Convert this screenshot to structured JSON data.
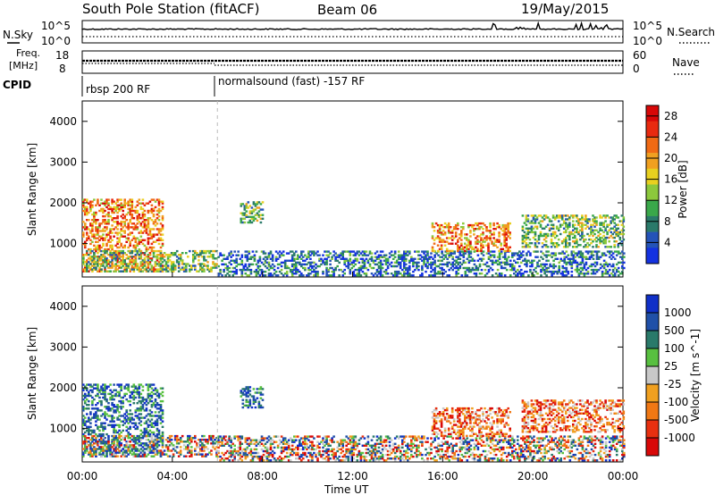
{
  "header": {
    "title": "South Pole Station (fitACF)",
    "beam": "Beam 06",
    "date": "19/May/2015"
  },
  "strips": {
    "nsky_label": "N.Sky",
    "nsky_ticks": [
      "10^5",
      "10^0"
    ],
    "nsearch_label": "N.Search",
    "nsearch_ticks": [
      "10^5",
      "10^0"
    ],
    "freq_label_1": "Freq.",
    "freq_label_2": "[MHz]",
    "freq_ticks": [
      "18",
      "8"
    ],
    "nave_label": "Nave",
    "nave_ticks": [
      "60",
      "0"
    ],
    "cpid_label": "CPID",
    "cpid_segments": [
      {
        "start_hour": 0,
        "text": "rbsp 200 RF"
      },
      {
        "start_hour": 6,
        "text": "normalsound (fast) -157 RF"
      }
    ]
  },
  "chart_data": [
    {
      "type": "heatmap",
      "panel": "power",
      "ylabel": "Slant Range [km]",
      "xlabel": "Time UT",
      "x_ticks": [
        "00:00",
        "04:00",
        "08:00",
        "12:00",
        "16:00",
        "20:00",
        "00:00"
      ],
      "y_ticks": [
        "1000",
        "2000",
        "3000",
        "4000"
      ],
      "xlim_hours": [
        0,
        24
      ],
      "ylim_km": [
        180,
        4500
      ],
      "colorbar": {
        "label": "Power [dB]",
        "ticks": [
          "4",
          "8",
          "12",
          "16",
          "20",
          "24",
          "28"
        ],
        "range": [
          0,
          30
        ],
        "colors": [
          "#1432e0",
          "#2453b8",
          "#2a7a6a",
          "#3aa84a",
          "#8cc83c",
          "#e8d020",
          "#f0a020",
          "#f06a14",
          "#e82a10",
          "#d80808"
        ]
      },
      "echo_regions": [
        {
          "t": [
            0.0,
            3.6
          ],
          "r": [
            300,
            2100
          ],
          "level": "strong"
        },
        {
          "t": [
            0.0,
            6.0
          ],
          "r": [
            300,
            800
          ],
          "level": "moderate"
        },
        {
          "t": [
            7.0,
            8.0
          ],
          "r": [
            1500,
            2000
          ],
          "level": "moderate"
        },
        {
          "t": [
            6.0,
            24.0
          ],
          "r": [
            200,
            800
          ],
          "level": "weak"
        },
        {
          "t": [
            15.5,
            19.0
          ],
          "r": [
            800,
            1500
          ],
          "level": "strong"
        },
        {
          "t": [
            19.5,
            24.0
          ],
          "r": [
            900,
            1700
          ],
          "level": "moderate"
        }
      ]
    },
    {
      "type": "heatmap",
      "panel": "velocity",
      "ylabel": "Slant Range [km]",
      "xlabel": "Time UT",
      "x_ticks": [
        "00:00",
        "04:00",
        "08:00",
        "12:00",
        "16:00",
        "20:00",
        "00:00"
      ],
      "y_ticks": [
        "1000",
        "2000",
        "3000",
        "4000"
      ],
      "xlim_hours": [
        0,
        24
      ],
      "ylim_km": [
        180,
        4500
      ],
      "colorbar": {
        "label": "Velocity [m s^-1]",
        "ticks": [
          "1000",
          "500",
          "100",
          "25",
          "-25",
          "-100",
          "-500",
          "-1000"
        ],
        "colors": [
          "#1030c8",
          "#2050a8",
          "#2a7a6a",
          "#58c040",
          "#c8c8c8",
          "#f0a020",
          "#f07814",
          "#e83010",
          "#d80808"
        ]
      },
      "echo_regions": [
        {
          "t": [
            0.0,
            3.6
          ],
          "r": [
            300,
            2100
          ],
          "sign": "positive"
        },
        {
          "t": [
            0.0,
            6.0
          ],
          "r": [
            300,
            800
          ],
          "sign": "mixed"
        },
        {
          "t": [
            7.0,
            8.0
          ],
          "r": [
            1500,
            2000
          ],
          "sign": "positive"
        },
        {
          "t": [
            6.0,
            24.0
          ],
          "r": [
            200,
            800
          ],
          "sign": "mixed"
        },
        {
          "t": [
            15.5,
            19.0
          ],
          "r": [
            800,
            1500
          ],
          "sign": "negative"
        },
        {
          "t": [
            19.5,
            24.0
          ],
          "r": [
            900,
            1700
          ],
          "sign": "negative"
        }
      ]
    }
  ]
}
